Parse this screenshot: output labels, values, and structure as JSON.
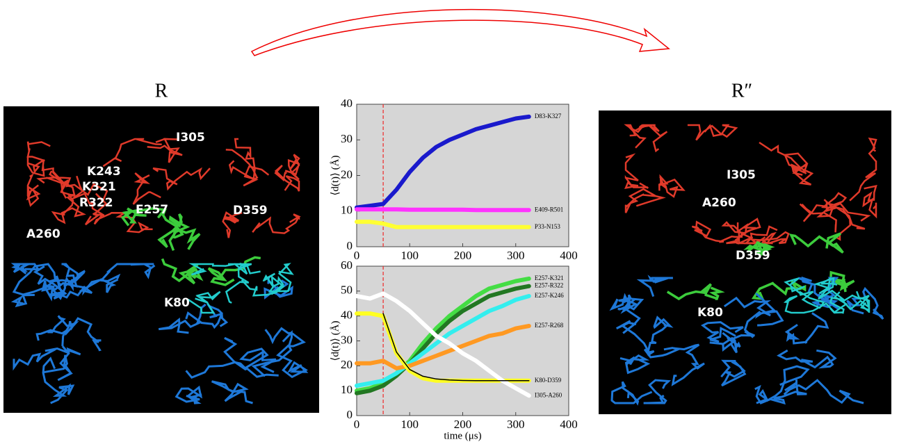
{
  "panels": [
    {
      "title": "R",
      "labels": [
        "I305",
        "K243",
        "K321",
        "R322",
        "A260",
        "E257",
        "D359",
        "K80"
      ]
    },
    {
      "title": "R″",
      "labels": [
        "I305",
        "A260",
        "D359",
        "K80"
      ]
    }
  ],
  "chart_data": [
    {
      "type": "line",
      "ylabel": "⟨d(t)⟩ (Å)",
      "xlim": [
        0,
        400
      ],
      "xticks": [
        0,
        100,
        200,
        300,
        400
      ],
      "ylim": [
        0,
        40
      ],
      "yticks": [
        0,
        10,
        20,
        30,
        40
      ],
      "vline": 50,
      "x": [
        0,
        25,
        50,
        75,
        100,
        125,
        150,
        175,
        200,
        225,
        250,
        275,
        300,
        325
      ],
      "series": [
        {
          "name": "D83-K327",
          "color": "#1a1acc",
          "values": [
            11,
            11.5,
            12,
            16,
            21,
            25,
            28,
            30,
            31.5,
            33,
            34,
            35,
            36,
            36.5
          ]
        },
        {
          "name": "E409-R501",
          "color": "#ff33ff",
          "values": [
            10.5,
            10.5,
            10.5,
            10.5,
            10.4,
            10.4,
            10.4,
            10.4,
            10.4,
            10.3,
            10.3,
            10.3,
            10.3,
            10.3
          ]
        },
        {
          "name": "P33-N153",
          "color": "#ffff33",
          "values": [
            7,
            7,
            6.5,
            5.5,
            5.5,
            5.5,
            5.5,
            5.5,
            5.5,
            5.5,
            5.5,
            5.5,
            5.5,
            5.5
          ]
        }
      ]
    },
    {
      "type": "line",
      "ylabel": "⟨d(t)⟩ (Å)",
      "xlabel": "time (μs)",
      "xlim": [
        0,
        400
      ],
      "xticks": [
        0,
        100,
        200,
        300,
        400
      ],
      "ylim": [
        0,
        60
      ],
      "yticks": [
        0,
        10,
        20,
        30,
        40,
        50,
        60
      ],
      "vline": 50,
      "x": [
        0,
        25,
        50,
        75,
        100,
        125,
        150,
        175,
        200,
        225,
        250,
        275,
        300,
        325
      ],
      "series": [
        {
          "name": "E257-K321",
          "color": "#44dd44",
          "values": [
            10,
            11,
            13,
            17,
            22,
            29,
            35,
            40,
            44,
            48,
            51,
            52.5,
            54,
            55
          ]
        },
        {
          "name": "E257-R322",
          "color": "#227722",
          "values": [
            9,
            10,
            12,
            16,
            21,
            27,
            33,
            38,
            42,
            45,
            48,
            49.5,
            51,
            52
          ]
        },
        {
          "name": "E257-K246",
          "color": "#33eeee",
          "values": [
            12,
            13,
            14,
            17,
            21,
            25,
            29,
            33,
            36,
            39,
            42,
            44,
            46.5,
            48
          ]
        },
        {
          "name": "E257-R268",
          "color": "#ff9922",
          "values": [
            21,
            21,
            22,
            19,
            20,
            22,
            24,
            26,
            28,
            30,
            32,
            33,
            35,
            36
          ]
        },
        {
          "name": "K80-D359",
          "color": "#ffff22",
          "values": [
            41,
            41,
            40,
            25,
            18,
            15,
            14,
            14,
            14,
            14,
            14,
            14,
            14,
            14
          ]
        },
        {
          "name": "I305-A260",
          "color": "#ffffff",
          "values": [
            48,
            47,
            49,
            46,
            42,
            37,
            32,
            29,
            25,
            22,
            18,
            14,
            11,
            8
          ]
        }
      ],
      "fit": {
        "color": "#000000",
        "x": [
          50,
          75,
          100,
          125,
          150,
          175,
          200,
          225,
          250,
          275,
          300,
          325
        ],
        "values": [
          41,
          25.5,
          18.5,
          15.8,
          14.7,
          14.3,
          14.1,
          14,
          14,
          14,
          14,
          14
        ]
      }
    }
  ]
}
